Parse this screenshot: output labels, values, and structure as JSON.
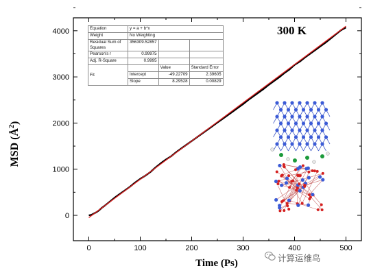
{
  "chart_data": {
    "type": "line",
    "title": "300 K",
    "xlabel": "Time (Ps)",
    "ylabel_main": "MSD (Å",
    "ylabel_sup": "2",
    "ylabel_close": ")",
    "xlim": [
      -30,
      530
    ],
    "ylim": [
      -550,
      4280
    ],
    "x_ticks": [
      0,
      100,
      200,
      300,
      400,
      500
    ],
    "y_ticks": [
      0,
      1000,
      2000,
      3000,
      4000
    ],
    "grid": false,
    "series": [
      {
        "color": "#000000",
        "x": [
          0,
          5,
          10,
          15,
          20,
          25,
          30,
          40,
          50,
          60,
          70,
          80,
          90,
          100,
          110,
          120,
          130,
          140,
          150,
          160,
          170,
          180,
          190,
          200,
          210,
          220,
          230,
          240,
          250,
          260,
          270,
          280,
          290,
          300,
          310,
          320,
          330,
          340,
          350,
          360,
          370,
          380,
          390,
          400,
          410,
          420,
          430,
          440,
          450,
          460,
          470,
          480,
          490,
          500
        ],
        "y": [
          0,
          10,
          40,
          70,
          110,
          160,
          200,
          290,
          380,
          460,
          540,
          620,
          710,
          790,
          860,
          940,
          1040,
          1130,
          1210,
          1280,
          1370,
          1450,
          1530,
          1610,
          1690,
          1770,
          1850,
          1930,
          2010,
          2090,
          2170,
          2250,
          2330,
          2410,
          2500,
          2580,
          2660,
          2740,
          2830,
          2910,
          2990,
          3080,
          3160,
          3260,
          3330,
          3420,
          3500,
          3580,
          3660,
          3740,
          3830,
          3920,
          4010,
          4070
        ]
      },
      {
        "color": "#e02020",
        "x": [
          0,
          500
        ],
        "y": [
          -49.22709,
          4098.0
        ]
      }
    ]
  },
  "fit_table": {
    "equation_label": "Equation",
    "equation_value": "y = a + b*x",
    "weight_label": "Weight",
    "weight_value": "No Weighting",
    "rss_label": "Residual Sum of Squares",
    "rss_value": "356309.52857",
    "pearson_label": "Pearson's r",
    "pearson_value": "0.99975",
    "adjr_label": "Adj. R-Square",
    "adjr_value": "0.9995",
    "value_header": "Value",
    "stderr_header": "Standard Error",
    "fit_label": "Fit",
    "intercept_label": "Intercept",
    "intercept_value": "-49.22709",
    "intercept_se": "2.39605",
    "slope_label": "Slope",
    "slope_value": "8.29528",
    "slope_se": "0.00829"
  },
  "watermark": "计算运维鸟",
  "colors": {
    "data_line": "#000000",
    "fit_line": "#e02020",
    "atom_blue": "#3b5bd6",
    "atom_red": "#d42020",
    "atom_green": "#1b9a3a",
    "atom_white": "#e8e8e8"
  }
}
